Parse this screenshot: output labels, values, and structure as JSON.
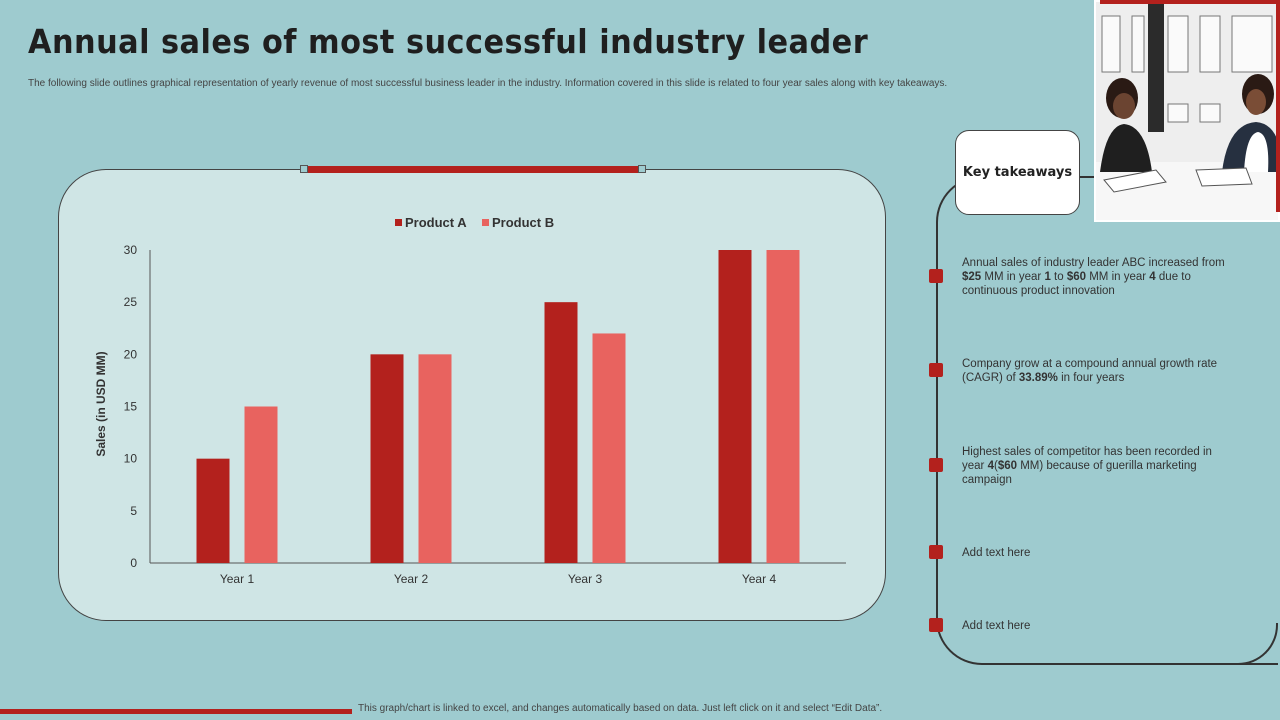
{
  "header": {
    "title": "Annual sales of most successful industry leader",
    "subtitle": "The following slide outlines graphical representation of yearly revenue of most successful business leader in the industry. Information covered in this slide is related to four year sales along with key takeaways."
  },
  "chart_data": {
    "type": "bar",
    "categories": [
      "Year 1",
      "Year 2",
      "Year 3",
      "Year 4"
    ],
    "series": [
      {
        "name": "Product A",
        "values": [
          10,
          20,
          25,
          30
        ],
        "color": "#b3211d"
      },
      {
        "name": "Product B",
        "values": [
          15,
          20,
          22,
          30
        ],
        "color": "#e8635f"
      }
    ],
    "title": "",
    "xlabel": "",
    "ylabel": "Sales (in USD MM)",
    "ylim": [
      0,
      30
    ],
    "yticks": [
      0,
      5,
      10,
      15,
      20,
      25,
      30
    ],
    "grid": false,
    "legend_position": "top-center"
  },
  "takeaways": {
    "heading": "Key takeaways",
    "items": [
      {
        "pre": "Annual sales of industry leader ABC increased from ",
        "b1": "$25",
        "mid1": " MM  in year ",
        "b2": "1",
        "mid2": " to ",
        "b3": "$60",
        "mid3": " MM  in year ",
        "b4": "4",
        "post": " due to continuous product innovation"
      },
      {
        "pre": "Company grow at a compound annual growth rate (CAGR) of ",
        "b1": "33.89%",
        "post": " in four years"
      },
      {
        "pre": "Highest sales of competitor has been recorded in year ",
        "b1": "4",
        "mid1": "(",
        "b2": "$60",
        "post": " MM)  because of guerilla marketing campaign"
      },
      {
        "text": "Add text here"
      },
      {
        "text": "Add text here"
      }
    ]
  },
  "footer": {
    "note": "This graph/chart is linked to excel, and changes automatically based on data. Just left click on it and select “Edit Data”."
  },
  "colors": {
    "accent": "#b3211d",
    "accent_light": "#e8635f",
    "background": "#9ecbcf",
    "panel": "#cfe5e5"
  }
}
